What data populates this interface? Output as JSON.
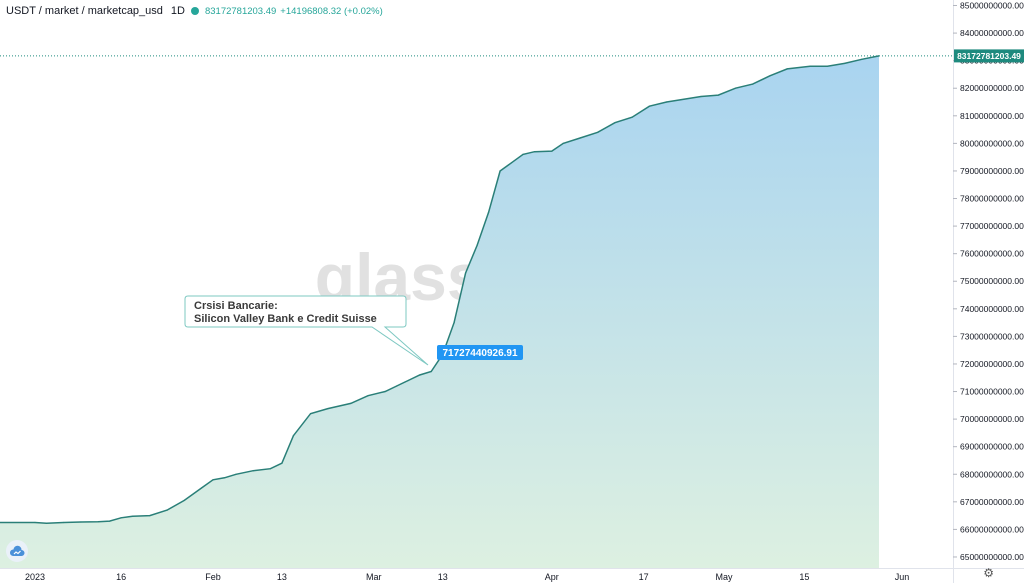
{
  "header": {
    "symbol": "USDT / market / marketcap_usd",
    "interval": "1D",
    "last_value": "83172781203.49",
    "change": "+14196808.32 (+0.02%)"
  },
  "watermark": "glassnode",
  "annotation": {
    "line1": "Crsisi Bancarie:",
    "line2": "Silicon Valley Bank e Credit Suisse",
    "value_label": "71727440926.91"
  },
  "price_label": "83172781203.49",
  "colors": {
    "line": "#2a7f78",
    "area_top": "#a9d4f0",
    "area_bottom": "#ddf0e1",
    "accent": "#2196f3",
    "price_tag": "#1e8a7e"
  },
  "icons": {
    "logo": "cloud-icon",
    "settings": "gear-icon"
  },
  "chart_data": {
    "type": "area",
    "series": [
      {
        "x": [
          "2023-01-01",
          "2023-01-03",
          "2023-01-06",
          "2023-01-09",
          "2023-01-12",
          "2023-01-14",
          "2023-01-16",
          "2023-01-18",
          "2023-01-21",
          "2023-01-24",
          "2023-01-27",
          "2023-01-30",
          "2023-02-01",
          "2023-02-03",
          "2023-02-05",
          "2023-02-08",
          "2023-02-11",
          "2023-02-13",
          "2023-02-15",
          "2023-02-18",
          "2023-02-21",
          "2023-02-25",
          "2023-02-28",
          "2023-03-03",
          "2023-03-05",
          "2023-03-07",
          "2023-03-09",
          "2023-03-11",
          "2023-03-13",
          "2023-03-15",
          "2023-03-17",
          "2023-03-19",
          "2023-03-21",
          "2023-03-23",
          "2023-03-25",
          "2023-03-27",
          "2023-03-29",
          "2023-04-01",
          "2023-04-03",
          "2023-04-06",
          "2023-04-09",
          "2023-04-12",
          "2023-04-15",
          "2023-04-18",
          "2023-04-21",
          "2023-04-24",
          "2023-04-27",
          "2023-04-30",
          "2023-05-03",
          "2023-05-06",
          "2023-05-09",
          "2023-05-12",
          "2023-05-16",
          "2023-05-19",
          "2023-05-22",
          "2023-05-25",
          "2023-05-28"
        ],
        "y": [
          66250000000,
          66220000000,
          66250000000,
          66270000000,
          66280000000,
          66300000000,
          66420000000,
          66480000000,
          66500000000,
          66700000000,
          67050000000,
          67500000000,
          67800000000,
          67870000000,
          68000000000,
          68130000000,
          68200000000,
          68400000000,
          69400000000,
          70200000000,
          70380000000,
          70570000000,
          70850000000,
          71000000000,
          71200000000,
          71400000000,
          71600000000,
          71727440926.91,
          72350000000,
          73500000000,
          75300000000,
          76300000000,
          77500000000,
          79000000000,
          79300000000,
          79600000000,
          79700000000,
          79720000000,
          80000000000,
          80200000000,
          80400000000,
          80750000000,
          80950000000,
          81350000000,
          81500000000,
          81600000000,
          81700000000,
          81750000000,
          82000000000,
          82150000000,
          82450000000,
          82700000000,
          82800000000,
          82800000000,
          82900000000,
          83050000000,
          83172781203.49
        ]
      }
    ],
    "x_ticks": [
      "2023",
      "16",
      "Feb",
      "13",
      "Mar",
      "13",
      "Apr",
      "17",
      "May",
      "15",
      "Jun"
    ],
    "x_tick_dates": [
      "2023-01-01",
      "2023-01-16",
      "2023-02-01",
      "2023-02-13",
      "2023-03-01",
      "2023-03-13",
      "2023-04-01",
      "2023-04-17",
      "2023-05-01",
      "2023-05-15",
      "2023-06-01"
    ],
    "y_ticks": [
      65000000000,
      66000000000,
      67000000000,
      68000000000,
      69000000000,
      70000000000,
      71000000000,
      72000000000,
      73000000000,
      74000000000,
      75000000000,
      76000000000,
      77000000000,
      78000000000,
      79000000000,
      80000000000,
      81000000000,
      82000000000,
      83000000000,
      84000000000,
      85000000000
    ],
    "y_tick_labels": [
      "65000000000.00",
      "66000000000.00",
      "67000000000.00",
      "68000000000.00",
      "69000000000.00",
      "70000000000.00",
      "71000000000.00",
      "72000000000.00",
      "73000000000.00",
      "74000000000.00",
      "75000000000.00",
      "76000000000.00",
      "77000000000.00",
      "78000000000.00",
      "79000000000.00",
      "80000000000.00",
      "81000000000.00",
      "82000000000.00",
      "83000000000.00",
      "84000000000.00",
      "85000000000.00"
    ],
    "ylim": [
      64600000000,
      85200000000
    ],
    "grid": false
  }
}
